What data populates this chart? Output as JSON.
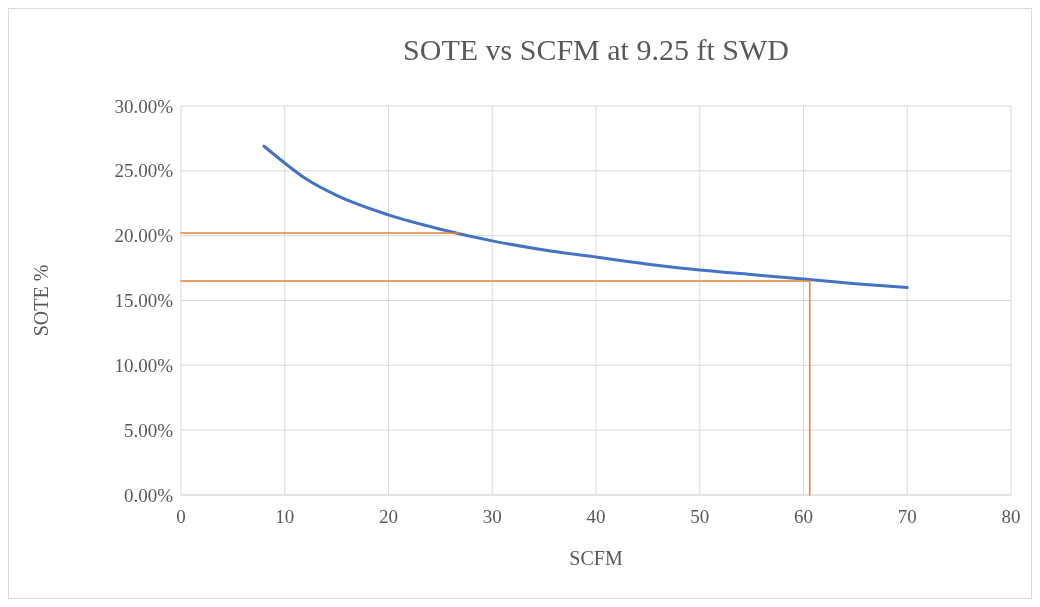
{
  "chart_data": {
    "type": "line",
    "title": "SOTE vs SCFM at 9.25 ft SWD",
    "xlabel": "SCFM",
    "ylabel": "SOTE %",
    "xlim": [
      0,
      80
    ],
    "xticks": [
      0,
      10,
      20,
      30,
      40,
      50,
      60,
      70,
      80
    ],
    "ylim": [
      0,
      30
    ],
    "yticks": [
      {
        "value": 0,
        "label": "0.00%"
      },
      {
        "value": 5,
        "label": "5.00%"
      },
      {
        "value": 10,
        "label": "10.00%"
      },
      {
        "value": 15,
        "label": "15.00%"
      },
      {
        "value": 20,
        "label": "20.00%"
      },
      {
        "value": 25,
        "label": "25.00%"
      },
      {
        "value": 30,
        "label": "30.00%"
      }
    ],
    "grid": true,
    "marker": "none",
    "line_style": "solid",
    "series": [
      {
        "color": "#4472c4",
        "x": [
          8,
          10,
          12,
          15,
          20,
          25,
          30,
          35,
          40,
          45,
          50,
          55,
          60,
          65,
          70
        ],
        "values": [
          26.9,
          25.6,
          24.4,
          23.1,
          21.6,
          20.5,
          19.6,
          18.9,
          18.35,
          17.8,
          17.35,
          17.0,
          16.65,
          16.3,
          16.0
        ]
      },
      {
        "color": "#ed7d31",
        "x": [
          0,
          26.9
        ],
        "values": [
          20.2,
          20.2
        ]
      },
      {
        "color": "#ed7d31",
        "x": [
          0,
          60.6,
          60.6
        ],
        "values": [
          16.5,
          16.5,
          0
        ]
      }
    ]
  }
}
